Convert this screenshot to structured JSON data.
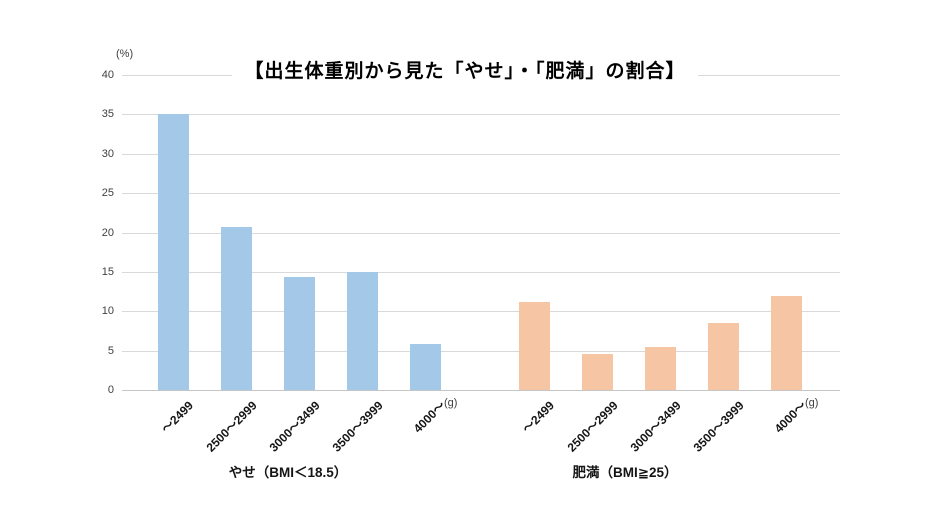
{
  "chart_data": {
    "type": "bar",
    "title": "【出生体重別から見た「やせ」・「肥満」の割合】",
    "y_axis": {
      "unit_label": "(%)",
      "min": 0,
      "max": 40,
      "tick_step": 5,
      "ticks": [
        0,
        5,
        10,
        15,
        20,
        25,
        30,
        35,
        40
      ]
    },
    "x_axis": {
      "unit_label": "(g)",
      "categories": [
        "～2499",
        "2500～2999",
        "3000～3499",
        "3500～3999",
        "4000～"
      ]
    },
    "series": [
      {
        "name": "やせ（BMI＜18.5）",
        "color": "#A3C8E8",
        "values": [
          35.1,
          20.7,
          14.4,
          15.0,
          5.9
        ]
      },
      {
        "name": "肥満（BMI≧25）",
        "color": "#F5C5A4",
        "values": [
          11.2,
          4.6,
          5.5,
          8.5,
          11.9
        ]
      }
    ],
    "grid": true,
    "legend_position": "none",
    "gridline_color": "#D9D9D9",
    "axis_line_color": "#C6C6C6",
    "tick_text_color": "#404040"
  }
}
